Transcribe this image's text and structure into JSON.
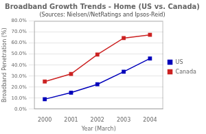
{
  "chart_data": {
    "type": "line",
    "title": "Broadband Growth Trends - Home (US vs. Canada)",
    "subtitle": "(Sources: Nielsen//NetRatings and Ipsos-Reid)",
    "xlabel": "Year (March)",
    "ylabel": "Broadband Penetration (%)",
    "x": [
      2000,
      2001,
      2002,
      2003,
      2004
    ],
    "series": [
      {
        "name": "US",
        "color": "#0000bb",
        "values": [
          9.0,
          15.0,
          22.5,
          34.0,
          46.0
        ],
        "marker": "square",
        "line_style": "solid"
      },
      {
        "name": "Canada",
        "color": "#cc2222",
        "values": [
          25.0,
          32.0,
          49.5,
          64.5,
          67.5
        ],
        "marker": "square",
        "line_style": "solid"
      }
    ],
    "xlim": [
      1999.6,
      2004.5
    ],
    "xticks": [
      2000,
      2001,
      2002,
      2003,
      2004
    ],
    "ylim": [
      0,
      80
    ],
    "yticks": [
      {
        "value": 0,
        "label": "0.0%"
      },
      {
        "value": 10,
        "label": "10.0%"
      },
      {
        "value": 20,
        "label": "20.0%"
      },
      {
        "value": 30,
        "label": "30.0%"
      },
      {
        "value": 40,
        "label": "40.0%"
      },
      {
        "value": 50,
        "label": "50.0%"
      },
      {
        "value": 60,
        "label": "60.0%"
      },
      {
        "value": 70,
        "label": "70.0%"
      },
      {
        "value": 80,
        "label": "80.0%"
      }
    ],
    "grid": "y",
    "legend": "right"
  }
}
